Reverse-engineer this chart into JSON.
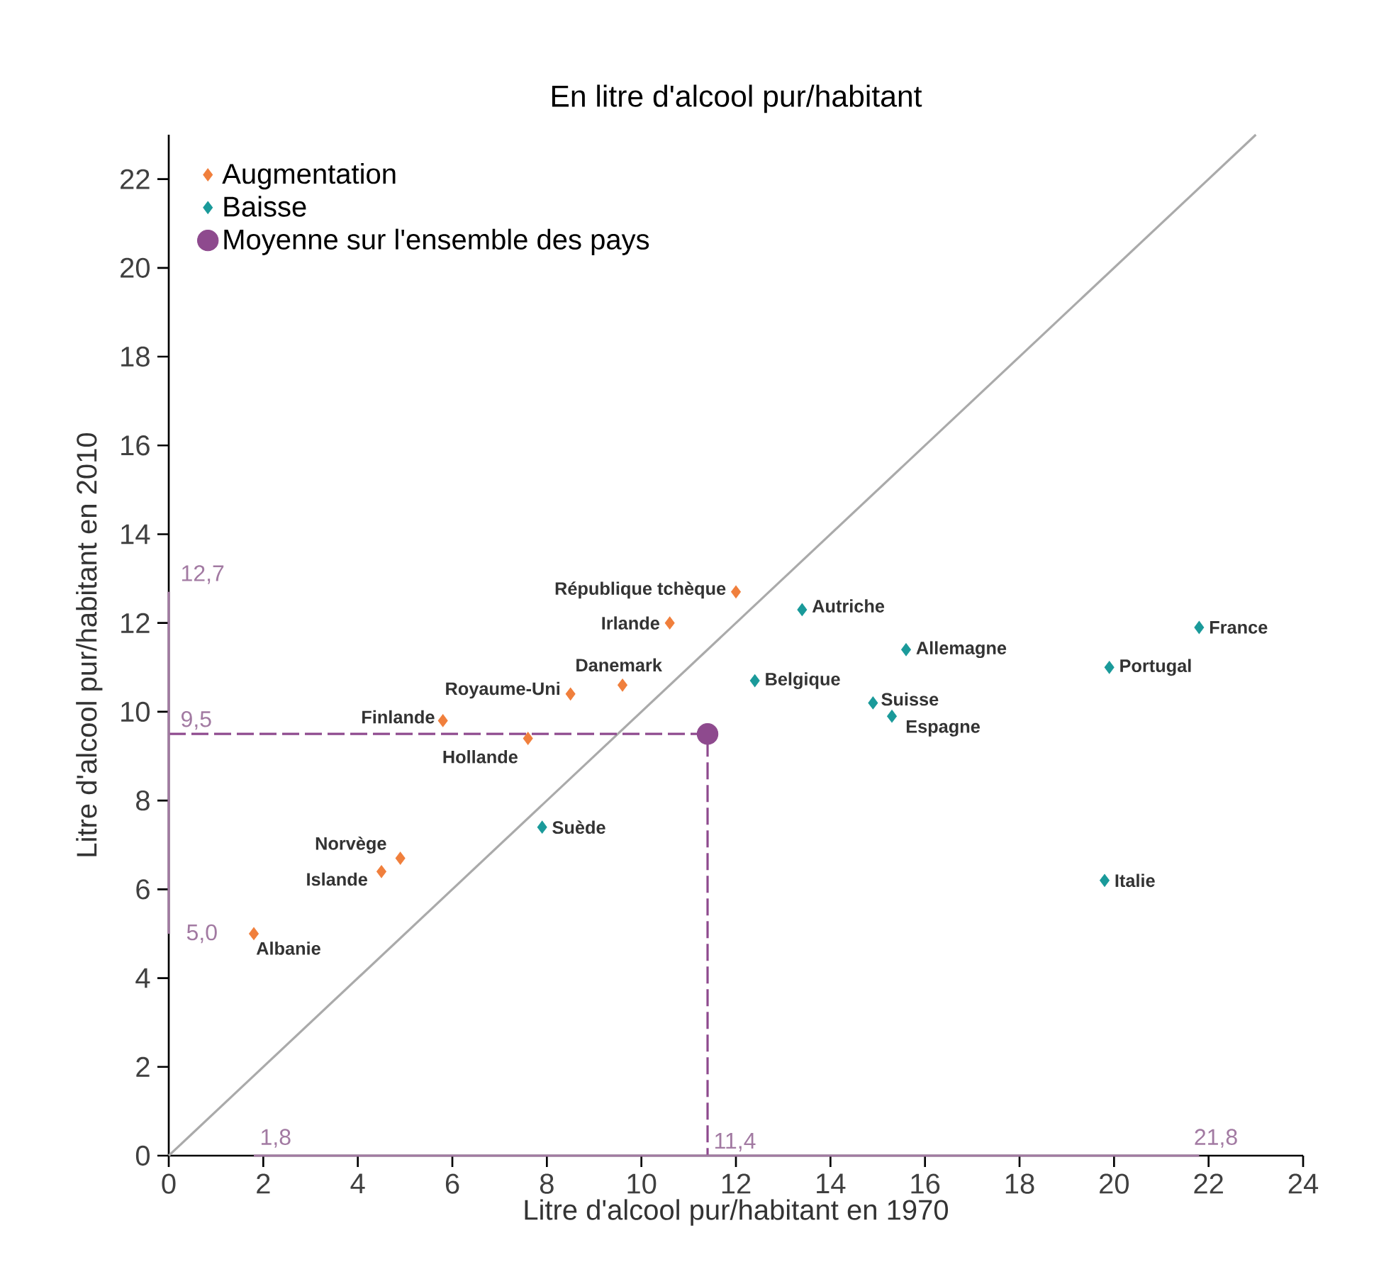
{
  "chart_data": {
    "type": "scatter",
    "title": "En litre d'alcool pur/habitant",
    "xlabel": "Litre d'alcool pur/habitant en 1970",
    "ylabel": "Litre d'alcool pur/habitant en 2010",
    "xlim": [
      0,
      24
    ],
    "ylim": [
      0,
      23
    ],
    "xticks": [
      0,
      2,
      4,
      6,
      8,
      10,
      12,
      14,
      16,
      18,
      20,
      22,
      24
    ],
    "yticks": [
      0,
      2,
      4,
      6,
      8,
      10,
      12,
      14,
      16,
      18,
      20,
      22
    ],
    "grid": false,
    "legend": "top left",
    "series": [
      {
        "name": "Augmentation",
        "marker": "diamond",
        "color": "#f07f3c",
        "x": [
          12.0,
          10.6,
          9.6,
          8.5,
          5.8,
          7.6,
          4.9,
          4.5,
          1.8
        ],
        "values": [
          12.7,
          12.0,
          10.6,
          10.4,
          9.8,
          9.4,
          6.7,
          6.4,
          5.0
        ]
      },
      {
        "name": "Baisse",
        "marker": "diamond",
        "color": "#1a9a9a",
        "x": [
          13.4,
          15.6,
          12.4,
          14.9,
          15.3,
          21.8,
          19.9,
          19.8,
          7.9
        ],
        "values": [
          12.3,
          11.4,
          10.7,
          10.2,
          9.9,
          11.9,
          11.0,
          6.2,
          7.4
        ]
      },
      {
        "name": "Moyenne sur l'ensemble des pays",
        "marker": "circle",
        "color": "#8e4a8e",
        "x": [
          11.4
        ],
        "values": [
          9.5
        ]
      },
      {
        "type": "line",
        "marker": "none",
        "line_style": "solid",
        "color": "#aaaaaa",
        "x": [
          0,
          23
        ],
        "values": [
          0,
          23
        ]
      },
      {
        "type": "line",
        "marker": "none",
        "line_style": "dashed",
        "color": "#8e4a8e",
        "x": [
          0,
          11.4,
          11.4
        ],
        "values": [
          9.5,
          9.5,
          0
        ]
      },
      {
        "type": "line",
        "marker": "none",
        "line_style": "solid",
        "color": "#a27aa2",
        "x": [
          0,
          0
        ],
        "values": [
          12.7,
          5.0
        ]
      },
      {
        "type": "line",
        "marker": "none",
        "line_style": "solid",
        "color": "#a27aa2",
        "x": [
          1.8,
          21.8
        ],
        "values": [
          0,
          0
        ]
      }
    ],
    "annotations": [
      {
        "text": "République tchèque",
        "x": 12.0,
        "y": 12.7
      },
      {
        "text": "Irlande",
        "x": 10.6,
        "y": 12.0
      },
      {
        "text": "Danemark",
        "x": 9.6,
        "y": 10.6
      },
      {
        "text": "Royaume-Uni",
        "x": 8.5,
        "y": 10.4
      },
      {
        "text": "Finlande",
        "x": 5.8,
        "y": 9.8
      },
      {
        "text": "Hollande",
        "x": 7.6,
        "y": 9.4
      },
      {
        "text": "Norvège",
        "x": 4.9,
        "y": 6.7
      },
      {
        "text": "Islande",
        "x": 4.5,
        "y": 6.4
      },
      {
        "text": "Albanie",
        "x": 1.8,
        "y": 5.0
      },
      {
        "text": "Autriche",
        "x": 13.4,
        "y": 12.3
      },
      {
        "text": "Allemagne",
        "x": 15.6,
        "y": 11.4
      },
      {
        "text": "Belgique",
        "x": 12.4,
        "y": 10.7
      },
      {
        "text": "Suisse",
        "x": 14.9,
        "y": 10.2
      },
      {
        "text": "Espagne",
        "x": 15.3,
        "y": 9.9
      },
      {
        "text": "France",
        "x": 21.8,
        "y": 11.9
      },
      {
        "text": "Portugal",
        "x": 19.9,
        "y": 11.0
      },
      {
        "text": "Italie",
        "x": 19.8,
        "y": 6.2
      },
      {
        "text": "Suède",
        "x": 7.9,
        "y": 7.4
      },
      {
        "text": "12,7",
        "x": 0,
        "y": 12.7
      },
      {
        "text": "9,5",
        "x": 0,
        "y": 9.5
      },
      {
        "text": "5,0",
        "x": 0,
        "y": 5.0
      },
      {
        "text": "1,8",
        "x": 1.8,
        "y": 0
      },
      {
        "text": "11,4",
        "x": 11.4,
        "y": 0
      },
      {
        "text": "21,8",
        "x": 21.8,
        "y": 0
      }
    ]
  }
}
